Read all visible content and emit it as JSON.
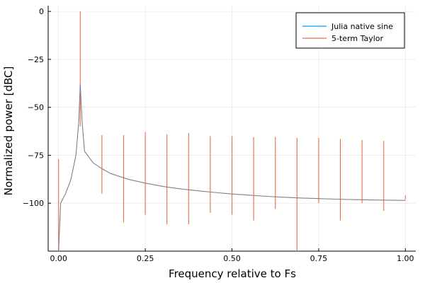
{
  "chart_data": {
    "type": "line",
    "title": "",
    "xlabel": "Frequency relative to Fs",
    "ylabel": "Normalized power [dBC]",
    "xlim": [
      -0.03,
      1.03
    ],
    "ylim": [
      -125,
      3
    ],
    "x_ticks": [
      0.0,
      0.25,
      0.5,
      0.75,
      1.0
    ],
    "x_tick_labels": [
      "0.00",
      "0.25",
      "0.50",
      "0.75",
      "1.00"
    ],
    "y_ticks": [
      0,
      -25,
      -50,
      -75,
      -100
    ],
    "y_tick_labels": [
      "0",
      "−25",
      "−50",
      "−75",
      "−100"
    ],
    "grid": true,
    "legend_position": "top-right",
    "fundamental": {
      "x": 0.0625,
      "y": 0
    },
    "series": [
      {
        "name": "Julia native sine",
        "color": "#009AFA",
        "points": [
          [
            0.0,
            -125
          ],
          [
            0.006,
            -100
          ],
          [
            0.02,
            -95
          ],
          [
            0.035,
            -88
          ],
          [
            0.05,
            -75
          ],
          [
            0.058,
            -58
          ],
          [
            0.0625,
            -38
          ],
          [
            0.068,
            -58
          ],
          [
            0.075,
            -73
          ],
          [
            0.1,
            -79
          ],
          [
            0.125,
            -82
          ],
          [
            0.15,
            -84.5
          ],
          [
            0.2,
            -87.5
          ],
          [
            0.25,
            -89.5
          ],
          [
            0.3,
            -91.2
          ],
          [
            0.35,
            -92.5
          ],
          [
            0.4,
            -93.5
          ],
          [
            0.45,
            -94.4
          ],
          [
            0.5,
            -95.2
          ],
          [
            0.55,
            -95.8
          ],
          [
            0.6,
            -96.4
          ],
          [
            0.65,
            -96.9
          ],
          [
            0.7,
            -97.3
          ],
          [
            0.75,
            -97.6
          ],
          [
            0.8,
            -97.9
          ],
          [
            0.85,
            -98.1
          ],
          [
            0.9,
            -98.3
          ],
          [
            0.95,
            -98.4
          ],
          [
            1.0,
            -98.5
          ]
        ]
      },
      {
        "name": "5-term Taylor",
        "color": "#E26F46",
        "spurs": [
          {
            "x": 0.0,
            "top": -77,
            "bottom": -125
          },
          {
            "x": 0.125,
            "top": -64.5,
            "bottom": -95
          },
          {
            "x": 0.1875,
            "top": -64.5,
            "bottom": -110
          },
          {
            "x": 0.25,
            "top": -63,
            "bottom": -106
          },
          {
            "x": 0.3125,
            "top": -64,
            "bottom": -111
          },
          {
            "x": 0.375,
            "top": -63.5,
            "bottom": -111
          },
          {
            "x": 0.4375,
            "top": -65,
            "bottom": -105
          },
          {
            "x": 0.5,
            "top": -65,
            "bottom": -106
          },
          {
            "x": 0.5625,
            "top": -65.5,
            "bottom": -109
          },
          {
            "x": 0.625,
            "top": -65.5,
            "bottom": -103
          },
          {
            "x": 0.6875,
            "top": -66,
            "bottom": -125
          },
          {
            "x": 0.75,
            "top": -66,
            "bottom": -100
          },
          {
            "x": 0.8125,
            "top": -66.5,
            "bottom": -109
          },
          {
            "x": 0.875,
            "top": -67,
            "bottom": -100
          },
          {
            "x": 0.9375,
            "top": -67.5,
            "bottom": -104
          },
          {
            "x": 1.0,
            "top": -96,
            "bottom": -98
          }
        ]
      }
    ]
  }
}
